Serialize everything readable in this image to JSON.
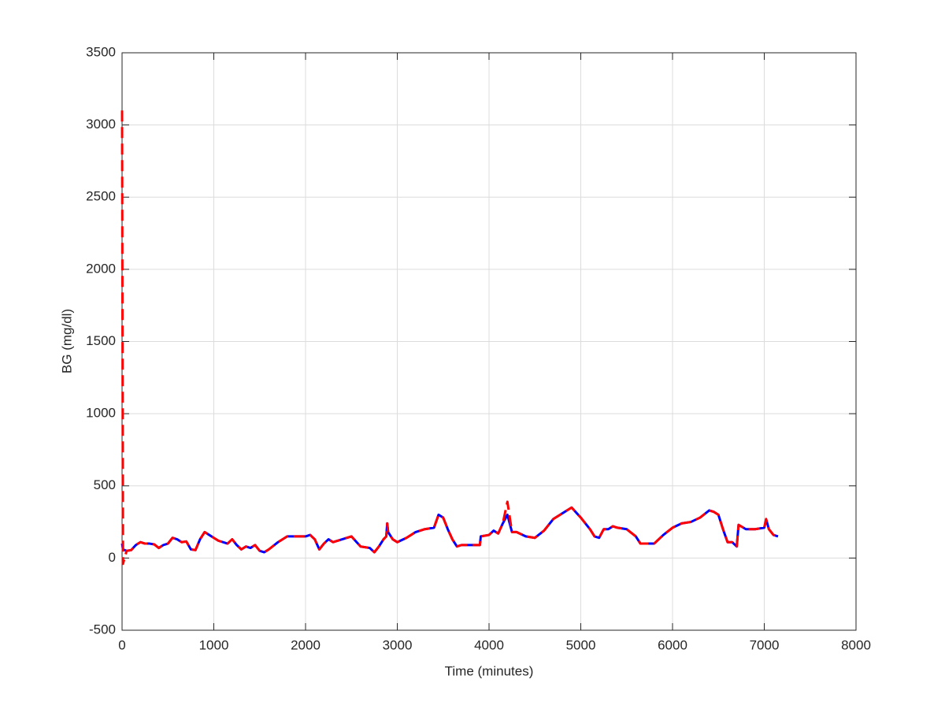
{
  "chart_data": {
    "type": "line",
    "xlabel": "Time (minutes)",
    "ylabel": "BG (mg/dl)",
    "x": [
      0,
      10,
      50,
      100,
      150,
      200,
      250,
      300,
      350,
      400,
      450,
      500,
      550,
      600,
      650,
      700,
      750,
      800,
      850,
      900,
      950,
      1000,
      1050,
      1100,
      1150,
      1200,
      1250,
      1300,
      1350,
      1400,
      1450,
      1500,
      1550,
      1600,
      1700,
      1800,
      1900,
      2000,
      2050,
      2100,
      2150,
      2200,
      2250,
      2300,
      2400,
      2500,
      2600,
      2700,
      2750,
      2800,
      2850,
      2880,
      2890,
      2900,
      2950,
      3000,
      3100,
      3200,
      3300,
      3400,
      3450,
      3500,
      3550,
      3600,
      3650,
      3700,
      3800,
      3900,
      3910,
      4000,
      4050,
      4100,
      4150,
      4200,
      4250,
      4300,
      4400,
      4500,
      4600,
      4700,
      4800,
      4900,
      5000,
      5100,
      5150,
      5200,
      5250,
      5300,
      5350,
      5400,
      5500,
      5600,
      5650,
      5700,
      5800,
      5900,
      6000,
      6100,
      6200,
      6300,
      6400,
      6450,
      6500,
      6550,
      6600,
      6650,
      6700,
      6720,
      6800,
      6900,
      7000,
      7020,
      7050,
      7100,
      7150
    ],
    "series": [
      {
        "color": "#0000ff",
        "linestyle": "solid",
        "values": [
          100,
          60,
          50,
          55,
          90,
          110,
          100,
          100,
          95,
          70,
          90,
          100,
          140,
          130,
          110,
          115,
          60,
          55,
          130,
          180,
          160,
          140,
          120,
          110,
          100,
          130,
          90,
          60,
          80,
          70,
          90,
          50,
          40,
          60,
          110,
          150,
          150,
          150,
          160,
          130,
          60,
          100,
          130,
          110,
          130,
          150,
          80,
          70,
          40,
          80,
          130,
          150,
          240,
          180,
          130,
          110,
          140,
          180,
          200,
          210,
          300,
          280,
          200,
          130,
          80,
          90,
          90,
          90,
          150,
          160,
          190,
          170,
          240,
          300,
          180,
          180,
          150,
          140,
          190,
          270,
          310,
          350,
          280,
          200,
          150,
          140,
          200,
          200,
          220,
          210,
          200,
          150,
          100,
          100,
          100,
          160,
          210,
          240,
          250,
          280,
          330,
          320,
          300,
          200,
          110,
          110,
          80,
          230,
          200,
          200,
          210,
          270,
          200,
          160,
          150
        ]
      },
      {
        "color": "#ff0000",
        "linestyle": "dashed",
        "values": [
          3100,
          -40,
          50,
          55,
          90,
          110,
          100,
          100,
          95,
          70,
          90,
          100,
          140,
          130,
          110,
          115,
          60,
          55,
          130,
          180,
          160,
          140,
          120,
          110,
          100,
          130,
          90,
          60,
          80,
          70,
          90,
          50,
          40,
          60,
          110,
          150,
          150,
          150,
          160,
          130,
          60,
          100,
          130,
          110,
          130,
          150,
          80,
          70,
          40,
          80,
          130,
          150,
          240,
          180,
          130,
          110,
          140,
          180,
          200,
          210,
          300,
          280,
          200,
          130,
          80,
          90,
          90,
          90,
          150,
          160,
          190,
          170,
          240,
          390,
          180,
          180,
          150,
          140,
          190,
          270,
          310,
          350,
          280,
          200,
          150,
          140,
          200,
          200,
          220,
          210,
          200,
          150,
          100,
          100,
          100,
          160,
          210,
          240,
          250,
          280,
          330,
          320,
          300,
          200,
          110,
          110,
          80,
          230,
          200,
          200,
          210,
          270,
          200,
          160,
          150
        ]
      }
    ],
    "xlim": [
      0,
      8000
    ],
    "xticks": [
      0,
      1000,
      2000,
      3000,
      4000,
      5000,
      6000,
      7000,
      8000
    ],
    "ylim": [
      -500,
      3500
    ],
    "yticks": [
      -500,
      0,
      500,
      1000,
      1500,
      2000,
      2500,
      3000,
      3500
    ],
    "grid": true
  }
}
